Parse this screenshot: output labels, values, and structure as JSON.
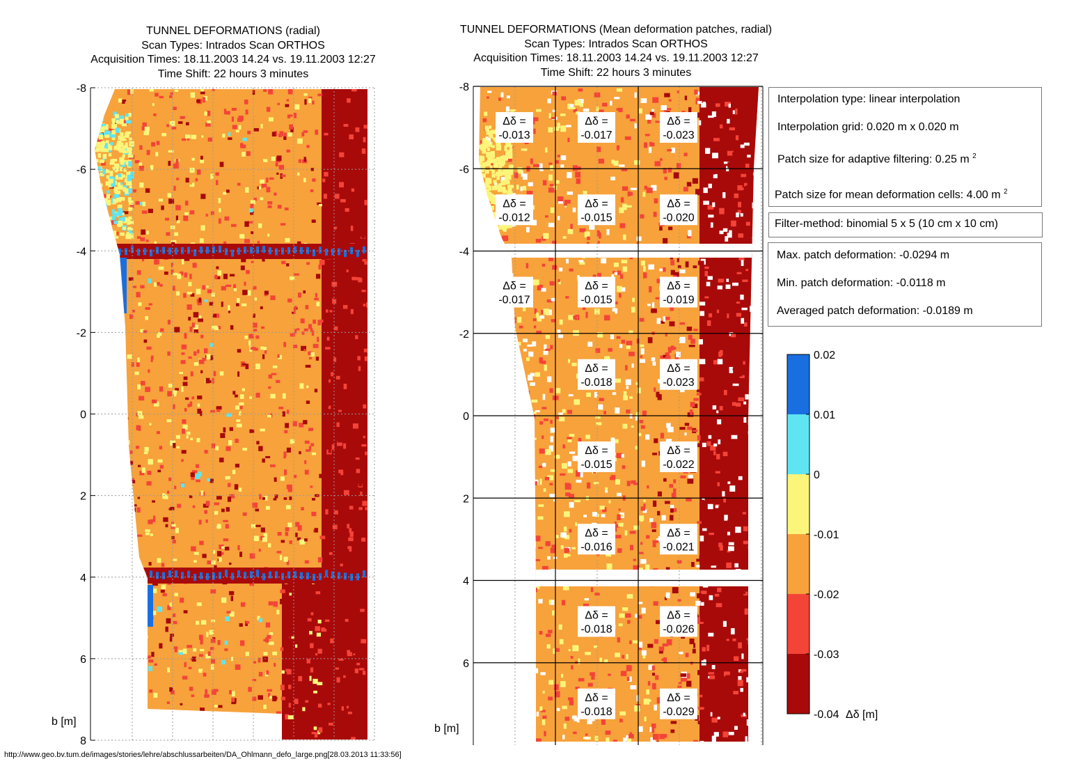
{
  "left_plot": {
    "title_lines": [
      "TUNNEL DEFORMATIONS (radial)",
      "Scan Types: Intrados Scan ORTHOS",
      "Acquisition Times: 18.11.2003 14.24 vs. 19.11.2003 12:27",
      "Time Shift: 22 hours 3 minutes"
    ],
    "ylabel": "b [m]"
  },
  "right_plot": {
    "title_lines": [
      "TUNNEL DEFORMATIONS (Mean deformation patches, radial)",
      "Scan Types: Intrados Scan ORTHOS",
      "Acquisition Times: 18.11.2003 14.24 vs. 19.11.2003 12:27",
      "Time Shift: 22 hours 3 minutes"
    ],
    "ylabel": "b [m]"
  },
  "info_boxes": {
    "interpolation_type": "Interpolation type: linear interpolation",
    "interpolation_grid": "Interpolation grid:  0.020 m x 0.020 m",
    "patch_adaptive": "Patch size for adaptive filtering:  0.25 m",
    "patch_mean": "Patch size for mean deformation cells: 4.00 m",
    "exponent": "2",
    "filter_method": "Filter-method: binomial  5 x 5 (10 cm x 10 cm)",
    "max_patch": "Max. patch deformation: -0.0294 m",
    "min_patch": "Min. patch deformation: -0.0118 m",
    "avg_patch": "Averaged patch deformation: -0.0189 m"
  },
  "colorbar": {
    "label": "Δδ [m]",
    "bands": [
      {
        "range": [
          0.01,
          0.02
        ],
        "color": "#1a6fe0"
      },
      {
        "range": [
          0.0,
          0.01
        ],
        "color": "#5fe5f2"
      },
      {
        "range": [
          -0.01,
          0.0
        ],
        "color": "#fbf57a"
      },
      {
        "range": [
          -0.02,
          -0.01
        ],
        "color": "#f7a23b"
      },
      {
        "range": [
          -0.03,
          -0.02
        ],
        "color": "#f44438"
      },
      {
        "range": [
          -0.04,
          -0.03
        ],
        "color": "#a80a0a"
      }
    ],
    "ticks": [
      "0.02",
      "0.01",
      "0",
      "-0.01",
      "-0.02",
      "-0.03",
      "-0.04"
    ]
  },
  "footer_url": "http://www.geo.bv.tum.de/images/stories/lehre/abschlussarbeiten/DA_Ohlmann_defo_large.png[28.03.2013 11:33:56]",
  "chart_data": [
    {
      "type": "heatmap",
      "title": "TUNNEL DEFORMATIONS (radial)",
      "ylabel": "b [m]",
      "ylim": [
        -8,
        8
      ],
      "y_reversed": true,
      "yticks": [
        "-8",
        "-6",
        "-4",
        "-2",
        "0",
        "2",
        "4",
        "6",
        "8"
      ],
      "value_range": [
        -0.04,
        0.02
      ],
      "dominant_bands": [
        "-0.02 to -0.01",
        "-0.04 to -0.03"
      ]
    },
    {
      "type": "heatmap",
      "title": "TUNNEL DEFORMATIONS (Mean deformation patches, radial)",
      "ylabel": "b [m]",
      "ylim": [
        -8,
        8
      ],
      "y_reversed": true,
      "yticks": [
        "-8",
        "-6",
        "-4",
        "-2",
        "0",
        "2",
        "4",
        "6"
      ],
      "patch_label_prefix": "Δδ =",
      "patches": [
        {
          "row": 0,
          "col": 0,
          "value": "-0.013"
        },
        {
          "row": 0,
          "col": 1,
          "value": "-0.017"
        },
        {
          "row": 0,
          "col": 2,
          "value": "-0.023"
        },
        {
          "row": 1,
          "col": 0,
          "value": "-0.012"
        },
        {
          "row": 1,
          "col": 1,
          "value": "-0.015"
        },
        {
          "row": 1,
          "col": 2,
          "value": "-0.020"
        },
        {
          "row": 2,
          "col": 0,
          "value": "-0.017"
        },
        {
          "row": 2,
          "col": 1,
          "value": "-0.015"
        },
        {
          "row": 2,
          "col": 2,
          "value": "-0.019"
        },
        {
          "row": 3,
          "col": 1,
          "value": "-0.018"
        },
        {
          "row": 3,
          "col": 2,
          "value": "-0.023"
        },
        {
          "row": 4,
          "col": 1,
          "value": "-0.015"
        },
        {
          "row": 4,
          "col": 2,
          "value": "-0.022"
        },
        {
          "row": 5,
          "col": 1,
          "value": "-0.016"
        },
        {
          "row": 5,
          "col": 2,
          "value": "-0.021"
        },
        {
          "row": 6,
          "col": 1,
          "value": "-0.018"
        },
        {
          "row": 6,
          "col": 2,
          "value": "-0.026"
        },
        {
          "row": 7,
          "col": 1,
          "value": "-0.018"
        },
        {
          "row": 7,
          "col": 2,
          "value": "-0.029"
        }
      ]
    }
  ]
}
